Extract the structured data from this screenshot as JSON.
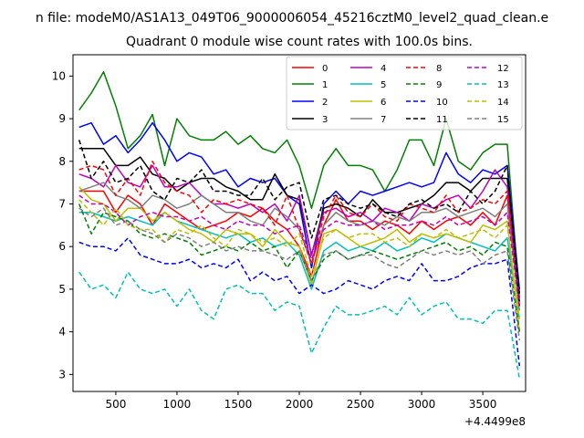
{
  "chart_data": {
    "type": "line",
    "suptitle": "n file: modeM0/AS1A13_049T06_9000006054_45216cztM0_level2_quad_clean.e",
    "title": "Quadrant 0 module wise count rates with 100.0s bins.",
    "xlabel": "",
    "ylabel": "",
    "x_offset_label": "+4.4499e8",
    "xlim": [
      150,
      3850
    ],
    "ylim": [
      2.6,
      10.5
    ],
    "x_ticks": [
      500,
      1000,
      1500,
      2000,
      2500,
      3000,
      3500
    ],
    "y_ticks": [
      3,
      4,
      5,
      6,
      7,
      8,
      9,
      10
    ],
    "grid": false,
    "legend": {
      "placement": "top-right",
      "columns": 4
    },
    "x": [
      200,
      300,
      400,
      500,
      600,
      700,
      800,
      900,
      1000,
      1100,
      1200,
      1300,
      1400,
      1500,
      1600,
      1700,
      1800,
      1900,
      2000,
      2100,
      2200,
      2300,
      2400,
      2500,
      2600,
      2700,
      2800,
      2900,
      3000,
      3100,
      3200,
      3300,
      3400,
      3500,
      3600,
      3700,
      3800
    ],
    "series": [
      {
        "name": "0",
        "color": "#ff0000",
        "dash": "solid",
        "values": [
          7.3,
          7.3,
          7.3,
          6.8,
          7.2,
          7.0,
          6.5,
          7.0,
          6.8,
          6.6,
          6.4,
          6.5,
          6.6,
          6.8,
          6.7,
          6.9,
          6.6,
          6.4,
          6.0,
          5.3,
          6.5,
          7.1,
          6.6,
          6.6,
          6.4,
          6.6,
          6.5,
          6.3,
          6.6,
          6.4,
          6.6,
          6.7,
          6.5,
          6.8,
          6.5,
          7.2,
          4.6
        ]
      },
      {
        "name": "1",
        "color": "#008000",
        "dash": "solid",
        "values": [
          9.2,
          9.6,
          10.1,
          9.3,
          8.3,
          8.6,
          9.1,
          7.9,
          9.0,
          8.6,
          8.5,
          8.5,
          8.7,
          8.4,
          8.6,
          8.3,
          8.2,
          8.5,
          7.9,
          6.9,
          7.9,
          8.3,
          7.9,
          7.9,
          7.8,
          7.3,
          7.8,
          8.5,
          8.5,
          7.9,
          9.0,
          8.0,
          7.8,
          8.2,
          8.4,
          8.4,
          4.8
        ]
      },
      {
        "name": "2",
        "color": "#0000ff",
        "dash": "solid",
        "values": [
          8.8,
          8.9,
          8.4,
          8.6,
          8.2,
          8.5,
          8.9,
          8.5,
          8.0,
          8.2,
          8.1,
          7.7,
          7.8,
          7.4,
          7.6,
          7.5,
          7.6,
          7.2,
          7.0,
          5.5,
          7.0,
          7.3,
          7.0,
          7.3,
          7.2,
          7.3,
          7.4,
          7.5,
          7.4,
          7.5,
          8.2,
          7.7,
          7.5,
          7.8,
          7.7,
          7.9,
          5.0
        ]
      },
      {
        "name": "3",
        "color": "#000000",
        "dash": "solid",
        "values": [
          8.3,
          8.3,
          8.3,
          7.9,
          7.9,
          8.1,
          7.7,
          7.6,
          7.3,
          7.5,
          7.6,
          7.6,
          7.4,
          7.3,
          7.1,
          7.1,
          7.7,
          7.2,
          7.1,
          5.8,
          6.9,
          7.0,
          6.9,
          6.7,
          7.1,
          6.8,
          6.8,
          6.9,
          7.0,
          7.2,
          7.5,
          7.5,
          7.3,
          7.6,
          7.6,
          7.6,
          4.9
        ]
      },
      {
        "name": "4",
        "color": "#bf00bf",
        "dash": "solid",
        "values": [
          7.7,
          7.6,
          7.4,
          7.9,
          7.5,
          7.4,
          7.9,
          7.4,
          7.4,
          7.5,
          7.2,
          7.0,
          7.0,
          6.9,
          7.0,
          6.8,
          7.0,
          6.6,
          7.2,
          5.8,
          6.8,
          6.9,
          6.7,
          6.8,
          6.6,
          6.9,
          6.8,
          6.6,
          7.0,
          6.9,
          7.1,
          7.2,
          6.9,
          7.3,
          7.8,
          7.4,
          4.7
        ]
      },
      {
        "name": "5",
        "color": "#00bfbf",
        "dash": "solid",
        "values": [
          6.8,
          6.8,
          6.7,
          6.6,
          6.7,
          6.6,
          6.5,
          6.8,
          6.6,
          6.5,
          6.4,
          6.3,
          6.2,
          6.3,
          6.1,
          6.2,
          6.0,
          6.1,
          5.8,
          5.0,
          5.9,
          6.1,
          5.9,
          6.0,
          5.9,
          6.1,
          5.9,
          6.0,
          6.2,
          6.1,
          6.3,
          6.2,
          6.1,
          6.0,
          5.9,
          6.2,
          4.3
        ]
      },
      {
        "name": "6",
        "color": "#bfbf00",
        "dash": "solid",
        "values": [
          7.4,
          7.1,
          7.0,
          6.6,
          6.9,
          6.9,
          6.6,
          6.8,
          6.6,
          6.4,
          6.3,
          6.1,
          6.4,
          6.3,
          6.3,
          6.0,
          6.4,
          6.1,
          6.0,
          5.1,
          6.3,
          6.4,
          6.2,
          6.0,
          6.1,
          6.2,
          6.4,
          6.1,
          6.3,
          6.2,
          6.3,
          6.2,
          6.1,
          6.5,
          6.4,
          6.6,
          4.0
        ]
      },
      {
        "name": "7",
        "color": "#808080",
        "dash": "solid",
        "values": [
          7.3,
          7.4,
          7.5,
          7.2,
          7.1,
          6.9,
          7.2,
          7.1,
          6.9,
          7.0,
          7.2,
          7.0,
          6.8,
          6.8,
          6.6,
          6.5,
          6.9,
          6.7,
          6.4,
          5.6,
          6.5,
          6.8,
          6.6,
          6.5,
          6.6,
          6.5,
          6.7,
          6.6,
          6.8,
          6.8,
          6.9,
          6.7,
          6.8,
          6.9,
          6.7,
          7.0,
          4.5
        ]
      },
      {
        "name": "8",
        "color": "#ff0000",
        "dash": "dashed",
        "values": [
          7.8,
          7.9,
          7.8,
          7.2,
          7.6,
          7.2,
          8.0,
          7.5,
          7.3,
          7.2,
          6.8,
          7.1,
          7.0,
          7.1,
          7.0,
          6.9,
          6.5,
          7.2,
          6.4,
          5.6,
          6.7,
          7.2,
          6.8,
          6.7,
          7.0,
          6.7,
          6.6,
          7.0,
          6.9,
          6.8,
          7.2,
          6.8,
          6.9,
          7.1,
          7.0,
          7.3,
          4.7
        ]
      },
      {
        "name": "9",
        "color": "#008000",
        "dash": "dashed",
        "values": [
          7.0,
          6.3,
          6.8,
          6.7,
          6.6,
          6.3,
          6.2,
          6.3,
          6.2,
          6.1,
          5.8,
          5.9,
          6.0,
          5.9,
          6.1,
          5.9,
          6.0,
          5.5,
          5.9,
          5.2,
          5.7,
          5.9,
          5.7,
          5.8,
          5.9,
          5.8,
          5.7,
          5.8,
          5.9,
          6.0,
          6.1,
          5.9,
          6.0,
          5.8,
          6.1,
          6.0,
          4.0
        ]
      },
      {
        "name": "10",
        "color": "#0000ff",
        "dash": "dashed",
        "values": [
          6.1,
          6.0,
          6.0,
          5.9,
          6.2,
          5.8,
          5.7,
          5.6,
          5.6,
          5.7,
          5.5,
          5.6,
          5.5,
          5.7,
          5.2,
          5.4,
          5.2,
          5.3,
          4.9,
          5.1,
          4.9,
          5.0,
          5.2,
          5.1,
          5.0,
          5.2,
          5.3,
          5.2,
          5.6,
          5.2,
          5.2,
          5.3,
          5.5,
          5.6,
          5.6,
          5.7,
          3.2
        ]
      },
      {
        "name": "11",
        "color": "#000000",
        "dash": "dashed",
        "values": [
          8.5,
          7.6,
          8.0,
          7.5,
          7.6,
          7.9,
          7.3,
          7.1,
          7.6,
          7.5,
          7.8,
          7.3,
          7.3,
          7.2,
          7.2,
          7.6,
          7.1,
          7.4,
          7.5,
          6.2,
          7.1,
          7.2,
          7.0,
          6.9,
          7.0,
          6.8,
          6.7,
          7.0,
          7.1,
          6.9,
          7.0,
          6.8,
          7.3,
          7.0,
          7.3,
          7.9,
          4.6
        ]
      },
      {
        "name": "12",
        "color": "#bf00bf",
        "dash": "dashed",
        "values": [
          7.2,
          7.0,
          7.0,
          6.8,
          6.5,
          6.7,
          6.8,
          6.7,
          6.7,
          6.6,
          6.7,
          6.5,
          6.4,
          6.6,
          6.5,
          6.5,
          6.3,
          6.4,
          6.5,
          5.7,
          6.4,
          6.6,
          6.5,
          6.5,
          6.6,
          6.4,
          6.5,
          6.5,
          6.6,
          6.5,
          6.7,
          6.5,
          6.6,
          6.7,
          6.5,
          6.8,
          4.6
        ]
      },
      {
        "name": "13",
        "color": "#00bfbf",
        "dash": "dashed",
        "values": [
          5.4,
          5.0,
          5.1,
          4.8,
          5.4,
          5.0,
          4.9,
          5.0,
          4.6,
          5.0,
          4.5,
          4.3,
          5.0,
          5.1,
          4.9,
          4.9,
          4.5,
          4.7,
          4.6,
          3.5,
          4.1,
          4.6,
          4.4,
          4.4,
          4.5,
          4.6,
          4.4,
          4.8,
          4.4,
          4.6,
          4.7,
          4.3,
          4.3,
          4.2,
          4.5,
          4.5,
          2.9
        ]
      },
      {
        "name": "14",
        "color": "#bfbf00",
        "dash": "dashed",
        "values": [
          7.1,
          6.8,
          6.5,
          6.9,
          6.5,
          6.4,
          6.4,
          6.1,
          6.4,
          6.3,
          6.5,
          6.2,
          6.0,
          6.4,
          6.3,
          6.1,
          6.2,
          6.0,
          6.3,
          5.3,
          6.2,
          6.4,
          6.2,
          6.3,
          6.3,
          6.1,
          6.2,
          6.0,
          6.3,
          6.2,
          6.4,
          6.2,
          6.3,
          6.4,
          6.2,
          6.5,
          4.3
        ]
      },
      {
        "name": "15",
        "color": "#808080",
        "dash": "dashed",
        "values": [
          6.9,
          6.7,
          6.9,
          6.5,
          6.6,
          6.4,
          6.3,
          6.1,
          6.3,
          6.2,
          6.0,
          6.1,
          5.9,
          6.0,
          5.9,
          5.9,
          5.8,
          5.7,
          5.9,
          5.2,
          5.8,
          5.9,
          5.7,
          5.8,
          5.8,
          5.6,
          5.5,
          5.7,
          5.9,
          5.8,
          5.9,
          5.8,
          5.9,
          5.6,
          5.8,
          5.9,
          3.8
        ]
      }
    ]
  }
}
